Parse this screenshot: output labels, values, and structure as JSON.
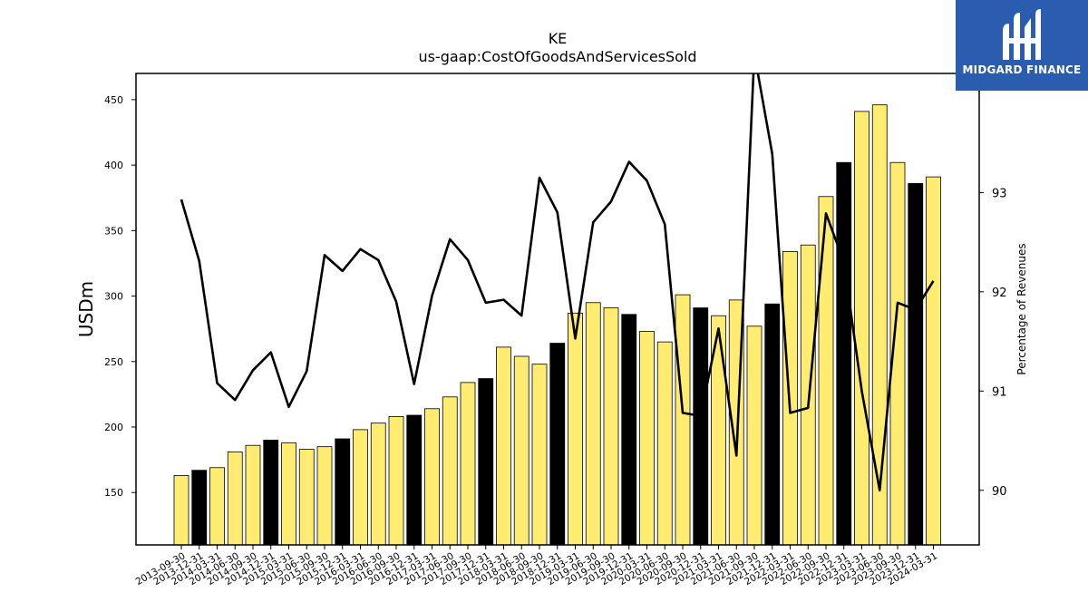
{
  "logo": {
    "text": "MIDGARD FINANCE",
    "icon": "midgard-m-logo-icon",
    "bg_color": "#2a5db0"
  },
  "chart_data": {
    "type": "bar",
    "title": "KE",
    "subtitle": "us-gaap:CostOfGoodsAndServicesSold",
    "ylabel": "USDm",
    "ylabel_right": "Percentage of Revenues",
    "ylim": [
      110,
      470
    ],
    "ylim_right": [
      89.45,
      94.2
    ],
    "yticks": [
      150,
      200,
      250,
      300,
      350,
      400,
      450
    ],
    "yticks_right": [
      90,
      91,
      92,
      93
    ],
    "grid": false,
    "legend": "none",
    "colors": {
      "bar_default": "#ffec70",
      "bar_highlight": "#000000",
      "line": "#000000"
    },
    "categories": [
      "2013-09-30",
      "2013-12-31",
      "2014-03-31",
      "2014-06-30",
      "2014-09-30",
      "2014-12-31",
      "2015-03-31",
      "2015-06-30",
      "2015-09-30",
      "2015-12-31",
      "2016-03-31",
      "2016-06-30",
      "2016-09-30",
      "2016-12-31",
      "2017-03-31",
      "2017-06-30",
      "2017-09-30",
      "2017-12-31",
      "2018-03-31",
      "2018-06-30",
      "2018-09-30",
      "2018-12-31",
      "2019-03-31",
      "2019-06-30",
      "2019-09-30",
      "2019-12-31",
      "2020-03-31",
      "2020-06-30",
      "2020-09-30",
      "2020-12-31",
      "2021-03-31",
      "2021-06-30",
      "2021-09-30",
      "2021-12-31",
      "2022-03-31",
      "2022-06-30",
      "2022-09-30",
      "2022-12-31",
      "2023-03-31",
      "2023-06-30",
      "2023-09-30",
      "2023-12-31",
      "2024-03-31"
    ],
    "series": [
      {
        "kind": "bar",
        "axis": "left",
        "values": [
          163,
          167,
          169,
          181,
          186,
          190,
          188,
          183,
          185,
          191,
          198,
          203,
          208,
          209,
          214,
          223,
          234,
          237,
          261,
          254,
          248,
          264,
          287,
          295,
          291,
          286,
          273,
          265,
          301,
          291,
          285,
          297,
          277,
          294,
          334,
          339,
          376,
          402,
          441,
          446,
          402,
          386,
          391
        ],
        "highlight": [
          false,
          true,
          false,
          false,
          false,
          true,
          false,
          false,
          false,
          true,
          false,
          false,
          false,
          true,
          false,
          false,
          false,
          true,
          false,
          false,
          false,
          true,
          false,
          false,
          false,
          true,
          false,
          false,
          false,
          true,
          false,
          false,
          false,
          true,
          false,
          false,
          false,
          true,
          false,
          false,
          false,
          true,
          false
        ]
      },
      {
        "kind": "line",
        "axis": "right",
        "values": [
          92.93,
          92.31,
          91.08,
          90.91,
          91.21,
          91.39,
          90.84,
          91.2,
          92.37,
          92.21,
          92.43,
          92.32,
          91.9,
          91.07,
          91.96,
          92.53,
          92.32,
          91.89,
          91.92,
          91.76,
          93.15,
          92.8,
          91.53,
          92.7,
          92.91,
          93.31,
          93.12,
          92.68,
          90.78,
          90.75,
          91.63,
          90.35,
          94.4,
          93.39,
          90.78,
          90.83,
          92.79,
          92.3,
          91.0,
          90.0,
          91.89,
          91.82,
          92.11
        ]
      }
    ]
  }
}
